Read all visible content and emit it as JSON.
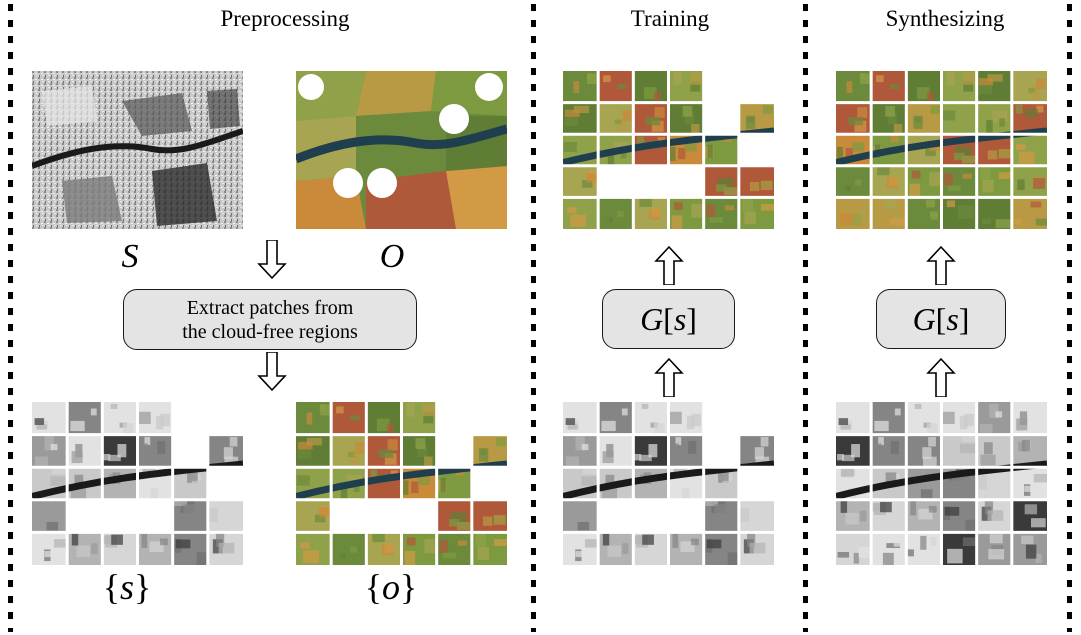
{
  "sections": {
    "preprocessing": "Preprocessing",
    "training": "Training",
    "synthesizing": "Synthesizing"
  },
  "labels": {
    "sar": "S",
    "optical": "O",
    "sar_patches_open": "{",
    "sar_patches_var": "s",
    "sar_patches_close": "}",
    "opt_patches_open": "{",
    "opt_patches_var": "o",
    "opt_patches_close": "}"
  },
  "extract_box": {
    "line1": "Extract patches from",
    "line2": "the cloud-free regions"
  },
  "generator": {
    "prefix": "G",
    "open": "[",
    "var": "s",
    "close": "]"
  },
  "colors": {
    "box_fill": "#e4e4e4",
    "grid_line": "#ffffff",
    "sar_tone": "#8a8a8a",
    "optical_green": "#6b8a3c",
    "optical_orange": "#c98a3a",
    "river_blue": "#1f3f4f"
  }
}
